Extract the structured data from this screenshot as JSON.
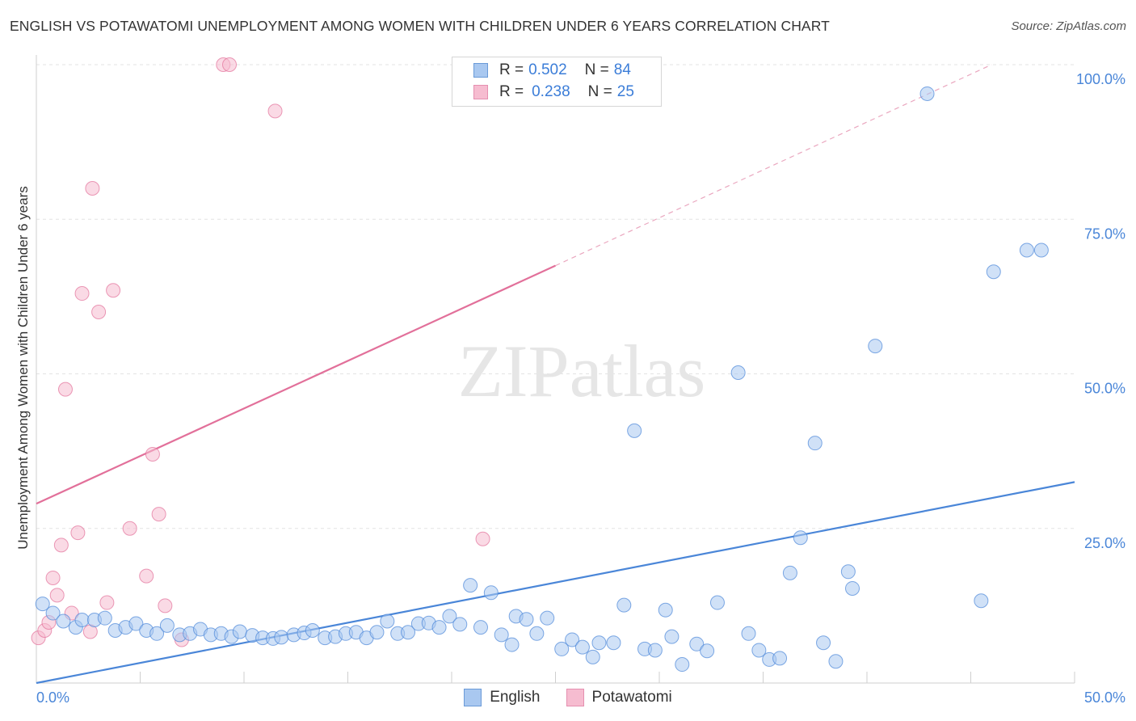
{
  "chart_data": {
    "type": "scatter",
    "title": "ENGLISH VS POTAWATOMI UNEMPLOYMENT AMONG WOMEN WITH CHILDREN UNDER 6 YEARS CORRELATION CHART",
    "source": "Source: ZipAtlas.com",
    "xlabel": "",
    "ylabel": "Unemployment Among Women with Children Under 6 years",
    "xlim": [
      0,
      50
    ],
    "ylim": [
      0,
      100
    ],
    "x_tick_labels": {
      "min": "0.0%",
      "max": "50.0%"
    },
    "y_ticks": [
      {
        "value": 100,
        "label": "100.0%"
      },
      {
        "value": 75,
        "label": "75.0%"
      },
      {
        "value": 50,
        "label": "50.0%"
      },
      {
        "value": 25,
        "label": "25.0%"
      }
    ],
    "watermark": "ZIPatlas",
    "series": [
      {
        "name": "English",
        "color": "#4a86d8",
        "fill": "#a9c8f0",
        "R": "0.502",
        "N": "84",
        "trend": {
          "x0": 0,
          "y0": 0,
          "x1": 50,
          "y1": 32.5
        },
        "points": [
          [
            0.3,
            12.8
          ],
          [
            0.8,
            11.3
          ],
          [
            1.3,
            10.0
          ],
          [
            1.9,
            9.0
          ],
          [
            2.2,
            10.2
          ],
          [
            2.8,
            10.2
          ],
          [
            3.3,
            10.5
          ],
          [
            3.8,
            8.5
          ],
          [
            4.3,
            9.0
          ],
          [
            4.8,
            9.6
          ],
          [
            5.3,
            8.5
          ],
          [
            5.8,
            8.0
          ],
          [
            6.3,
            9.3
          ],
          [
            6.9,
            7.8
          ],
          [
            7.4,
            8.0
          ],
          [
            7.9,
            8.7
          ],
          [
            8.4,
            7.8
          ],
          [
            8.9,
            8.0
          ],
          [
            9.4,
            7.5
          ],
          [
            9.8,
            8.3
          ],
          [
            10.4,
            7.7
          ],
          [
            10.9,
            7.3
          ],
          [
            11.4,
            7.2
          ],
          [
            11.8,
            7.4
          ],
          [
            12.4,
            7.8
          ],
          [
            12.9,
            8.1
          ],
          [
            13.3,
            8.5
          ],
          [
            13.9,
            7.3
          ],
          [
            14.4,
            7.5
          ],
          [
            14.9,
            8.0
          ],
          [
            15.4,
            8.2
          ],
          [
            15.9,
            7.3
          ],
          [
            16.4,
            8.2
          ],
          [
            16.9,
            10.0
          ],
          [
            17.4,
            8.0
          ],
          [
            17.9,
            8.2
          ],
          [
            18.4,
            9.6
          ],
          [
            18.9,
            9.7
          ],
          [
            19.4,
            9.0
          ],
          [
            19.9,
            10.8
          ],
          [
            20.4,
            9.5
          ],
          [
            20.9,
            15.8
          ],
          [
            21.4,
            9.0
          ],
          [
            21.9,
            14.6
          ],
          [
            22.4,
            7.8
          ],
          [
            22.9,
            6.2
          ],
          [
            23.1,
            10.8
          ],
          [
            23.6,
            10.3
          ],
          [
            24.1,
            8.0
          ],
          [
            24.6,
            10.5
          ],
          [
            25.3,
            5.5
          ],
          [
            25.8,
            7.0
          ],
          [
            26.3,
            5.8
          ],
          [
            26.8,
            4.2
          ],
          [
            27.1,
            6.5
          ],
          [
            27.8,
            6.5
          ],
          [
            28.3,
            12.6
          ],
          [
            28.8,
            40.8
          ],
          [
            29.3,
            5.5
          ],
          [
            29.8,
            5.3
          ],
          [
            30.3,
            11.8
          ],
          [
            30.6,
            7.5
          ],
          [
            31.1,
            3.0
          ],
          [
            31.8,
            6.3
          ],
          [
            32.3,
            5.2
          ],
          [
            32.8,
            13.0
          ],
          [
            33.8,
            50.2
          ],
          [
            34.3,
            8.0
          ],
          [
            34.8,
            5.3
          ],
          [
            35.3,
            3.8
          ],
          [
            35.8,
            4.0
          ],
          [
            36.3,
            17.8
          ],
          [
            36.8,
            23.5
          ],
          [
            37.5,
            38.8
          ],
          [
            37.9,
            6.5
          ],
          [
            38.5,
            3.5
          ],
          [
            39.1,
            18.0
          ],
          [
            39.3,
            15.3
          ],
          [
            40.4,
            54.5
          ],
          [
            42.9,
            95.3
          ],
          [
            45.5,
            13.3
          ],
          [
            46.1,
            66.5
          ],
          [
            47.7,
            70.0
          ],
          [
            48.4,
            70.0
          ]
        ]
      },
      {
        "name": "Potawatomi",
        "color": "#e2709a",
        "fill": "#f6bcd0",
        "R": "0.238",
        "N": "25",
        "trend": {
          "x0": 0,
          "y0": 29.0,
          "x1": 25,
          "y1": 67.5
        },
        "trend_ext": {
          "x0": 25,
          "y0": 67.5,
          "x1": 46,
          "y1": 100
        },
        "points": [
          [
            0.1,
            7.3
          ],
          [
            0.4,
            8.5
          ],
          [
            0.6,
            9.8
          ],
          [
            0.8,
            17.0
          ],
          [
            1.0,
            14.2
          ],
          [
            1.2,
            22.3
          ],
          [
            1.4,
            47.5
          ],
          [
            1.7,
            11.3
          ],
          [
            2.0,
            24.3
          ],
          [
            2.2,
            63.0
          ],
          [
            2.6,
            8.3
          ],
          [
            2.7,
            80.0
          ],
          [
            3.0,
            60.0
          ],
          [
            3.4,
            13.0
          ],
          [
            3.7,
            63.5
          ],
          [
            4.5,
            25.0
          ],
          [
            5.3,
            17.3
          ],
          [
            5.6,
            37.0
          ],
          [
            5.9,
            27.3
          ],
          [
            6.2,
            12.5
          ],
          [
            7.0,
            7.0
          ],
          [
            9.0,
            100.0
          ],
          [
            9.3,
            100.0
          ],
          [
            11.5,
            92.5
          ],
          [
            21.5,
            23.3
          ]
        ]
      }
    ]
  }
}
